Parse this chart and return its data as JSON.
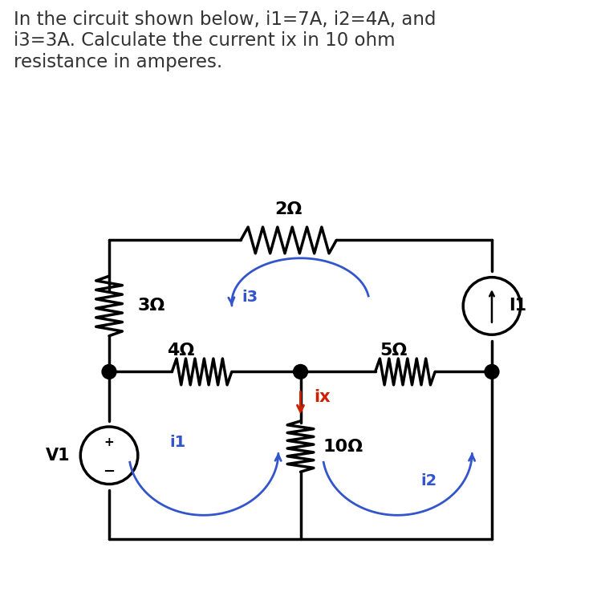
{
  "title_text": "In the circuit shown below, i1=7A, i2=4A, and\ni3=3A. Calculate the current ix in 10 ohm\nresistance in amperes.",
  "title_fontsize": 16.5,
  "title_color": "#333333",
  "bg_color": "#ffffff",
  "circuit_color": "#000000",
  "blue_color": "#3355cc",
  "red_color": "#cc2200",
  "lw": 2.5,
  "resistor_2_label": "2Ω",
  "resistor_3_label": "3Ω",
  "resistor_4_label": "4Ω",
  "resistor_5_label": "5Ω",
  "resistor_10_label": "10Ω",
  "i1_label": "i1",
  "i2_label": "i2",
  "i3_label": "i3",
  "ix_label": "ix",
  "I1_label": "I1",
  "V1_label": "V1",
  "label_fontsize": 15,
  "loop_label_fontsize": 14
}
